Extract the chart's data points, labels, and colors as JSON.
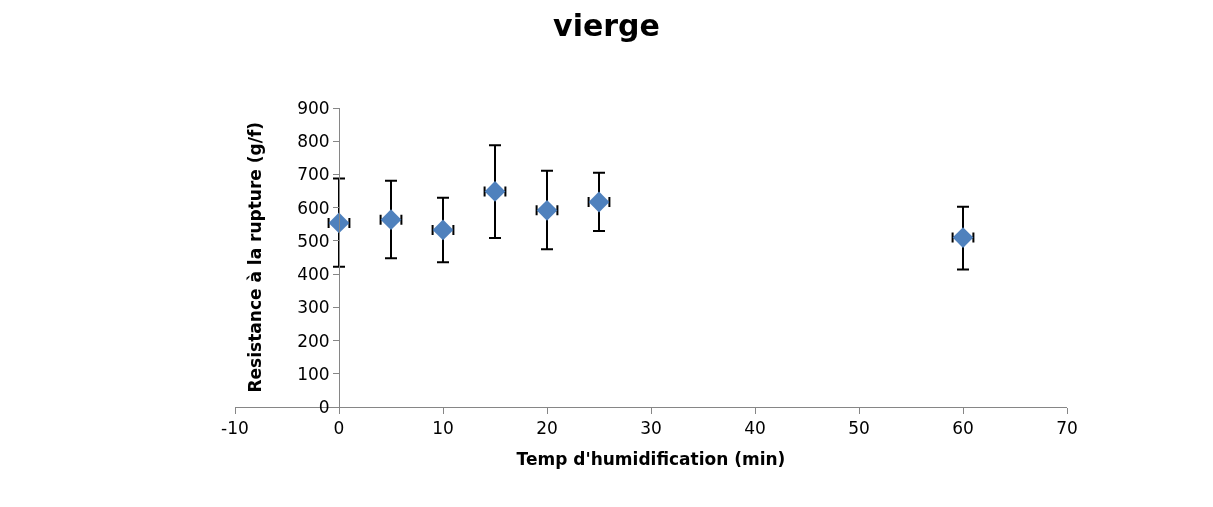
{
  "chart_data": {
    "type": "scatter",
    "title": "vierge",
    "xlabel": "Temp d'humidification (min)",
    "ylabel": "Resistance à la rupture (g/f)",
    "x": [
      0,
      5,
      10,
      15,
      20,
      25,
      60
    ],
    "series": [
      {
        "color": "#4f81bd",
        "values": [
          554,
          564,
          533,
          649,
          592,
          617,
          510
        ],
        "errors": [
          [
            422,
            688
          ],
          [
            448,
            681
          ],
          [
            436,
            630
          ],
          [
            509,
            788
          ],
          [
            475,
            711
          ],
          [
            530,
            705
          ],
          [
            414,
            603
          ]
        ],
        "xerrors": [
          1,
          1,
          1,
          1,
          1,
          1,
          1
        ]
      }
    ],
    "marker": "diamond",
    "xlim": [
      -10,
      70
    ],
    "xticks": [
      -10,
      0,
      10,
      20,
      30,
      40,
      50,
      60,
      70
    ],
    "ylim": [
      0,
      900
    ],
    "yticks": [
      0,
      100,
      200,
      300,
      400,
      500,
      600,
      700,
      800,
      900
    ],
    "legend": false
  }
}
